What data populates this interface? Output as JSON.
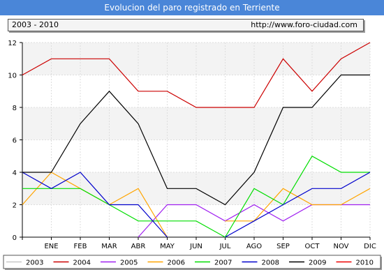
{
  "page": {
    "title": "Evolucion del paro registrado en Terriente",
    "period": "2003 - 2010",
    "url": "http://www.foro-ciudad.com"
  },
  "chart_data": {
    "type": "line",
    "title": "Evolucion del paro registrado en Terriente",
    "xlabel": "",
    "ylabel": "",
    "categories": [
      "",
      "ENE",
      "FEB",
      "MAR",
      "ABR",
      "MAY",
      "JUN",
      "JUL",
      "AGO",
      "SEP",
      "OCT",
      "NOV",
      "DIC"
    ],
    "ylim": [
      0,
      12
    ],
    "yticks": [
      0,
      2,
      4,
      6,
      8,
      10,
      12
    ],
    "grid": true,
    "legend_position": "bottom",
    "series": [
      {
        "name": "2003",
        "color": "#c8c8c8",
        "values": [
          null,
          null,
          null,
          null,
          null,
          null,
          null,
          null,
          null,
          null,
          null,
          null,
          null
        ]
      },
      {
        "name": "2004",
        "color": "#cc0000",
        "values": [
          10,
          11,
          11,
          11,
          9,
          9,
          8,
          8,
          8,
          11,
          9,
          11,
          12
        ]
      },
      {
        "name": "2005",
        "color": "#a020f0",
        "values": [
          null,
          null,
          null,
          null,
          0,
          2,
          2,
          1,
          2,
          1,
          2,
          2,
          2
        ]
      },
      {
        "name": "2006",
        "color": "#ffa500",
        "values": [
          2,
          4,
          3,
          2,
          3,
          0,
          null,
          1,
          1,
          3,
          2,
          2,
          3
        ]
      },
      {
        "name": "2007",
        "color": "#00dd00",
        "values": [
          3,
          3,
          3,
          2,
          1,
          1,
          1,
          0,
          3,
          2,
          5,
          4,
          4
        ]
      },
      {
        "name": "2008",
        "color": "#0000cc",
        "values": [
          4,
          3,
          4,
          2,
          2,
          0,
          null,
          0,
          1,
          2,
          3,
          3,
          4
        ]
      },
      {
        "name": "2009",
        "color": "#000000",
        "values": [
          4,
          4,
          7,
          9,
          7,
          3,
          3,
          2,
          4,
          8,
          8,
          10,
          10
        ]
      },
      {
        "name": "2010",
        "color": "#ee0000",
        "values": [
          10,
          null,
          null,
          null,
          null,
          null,
          null,
          null,
          null,
          null,
          null,
          null,
          null
        ]
      }
    ]
  }
}
